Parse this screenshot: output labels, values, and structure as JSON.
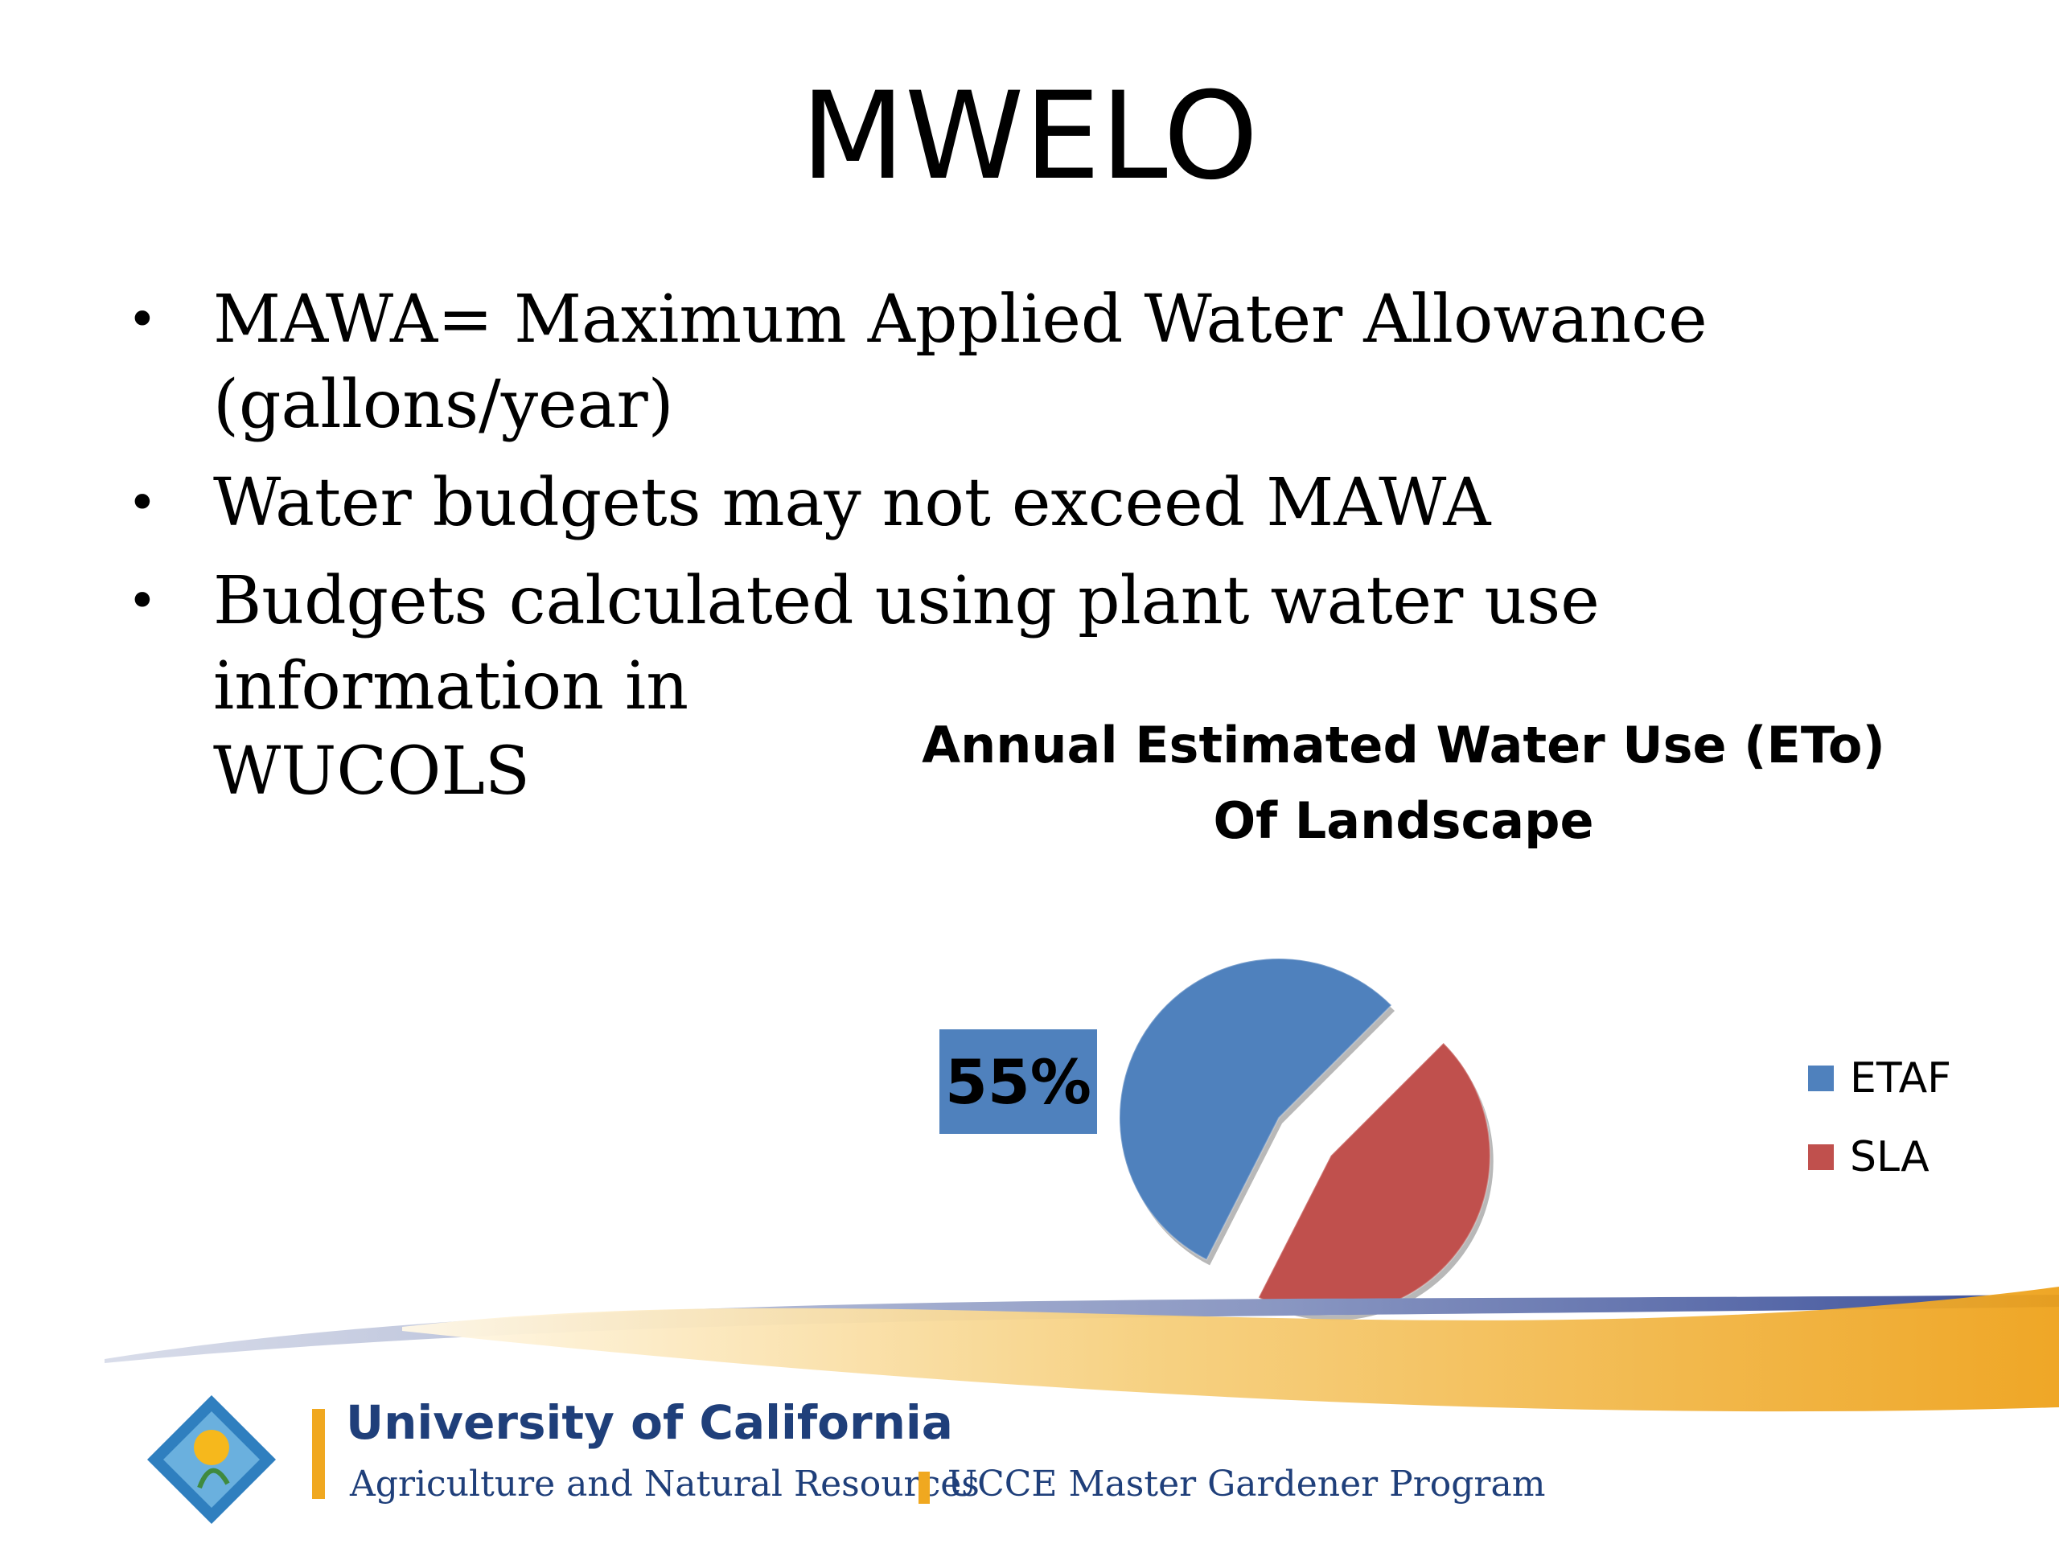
{
  "slide": {
    "title": "MWELO",
    "bullets": [
      {
        "line1": "MAWA= Maximum Applied Water Allowance",
        "line2": "(gallons/year)"
      },
      {
        "line1": "Water budgets may not exceed MAWA",
        "line2": ""
      },
      {
        "line1": "Budgets calculated using plant water use information in",
        "line2": "WUCOLS"
      }
    ],
    "bullet_glyph": "•"
  },
  "chart_data": {
    "type": "pie",
    "title_line1": "Annual Estimated Water Use (ETo)",
    "title_line2": "Of Landscape",
    "slices": [
      {
        "name": "ETAF",
        "value": 55,
        "color": "#4f81bd"
      },
      {
        "name": "SLA",
        "value": 45,
        "color": "#c0504d"
      }
    ],
    "data_labels": [
      {
        "slice": "ETAF",
        "text": "55%"
      }
    ],
    "legend_position": "right"
  },
  "footer": {
    "org_line1": "University of California",
    "org_line2": "Agriculture and Natural Resources",
    "program": "UCCE Master Gardener Program",
    "ribbon_colors": [
      "#f0a820",
      "#3b4f9a"
    ]
  }
}
